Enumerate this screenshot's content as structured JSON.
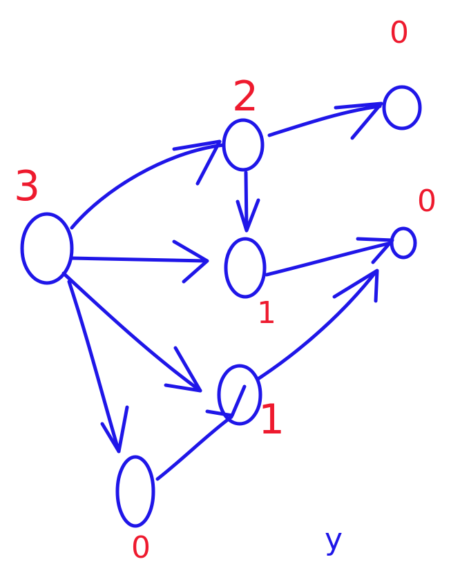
{
  "diagram": {
    "kind": "handwritten directed graph",
    "ink": {
      "edge_color": "#1f16e8",
      "label_color": "#ee1a2e"
    },
    "nodes": [
      {
        "id": "root",
        "label": "3"
      },
      {
        "id": "n2",
        "label": "2"
      },
      {
        "id": "sinkA",
        "label": "0"
      },
      {
        "id": "mid1",
        "label": "1"
      },
      {
        "id": "sinkB",
        "label": "0"
      },
      {
        "id": "low1",
        "label": "1"
      },
      {
        "id": "bot0",
        "label": "0"
      }
    ],
    "edges": [
      {
        "from": "root",
        "to": "n2"
      },
      {
        "from": "root",
        "to": "mid1"
      },
      {
        "from": "root",
        "to": "low1"
      },
      {
        "from": "root",
        "to": "bot0"
      },
      {
        "from": "n2",
        "to": "sinkA"
      },
      {
        "from": "n2",
        "to": "mid1"
      },
      {
        "from": "mid1",
        "to": "sinkB"
      },
      {
        "from": "low1",
        "to": "sinkB"
      },
      {
        "from": "bot0",
        "to": "low1"
      }
    ],
    "stray_text": "y"
  }
}
